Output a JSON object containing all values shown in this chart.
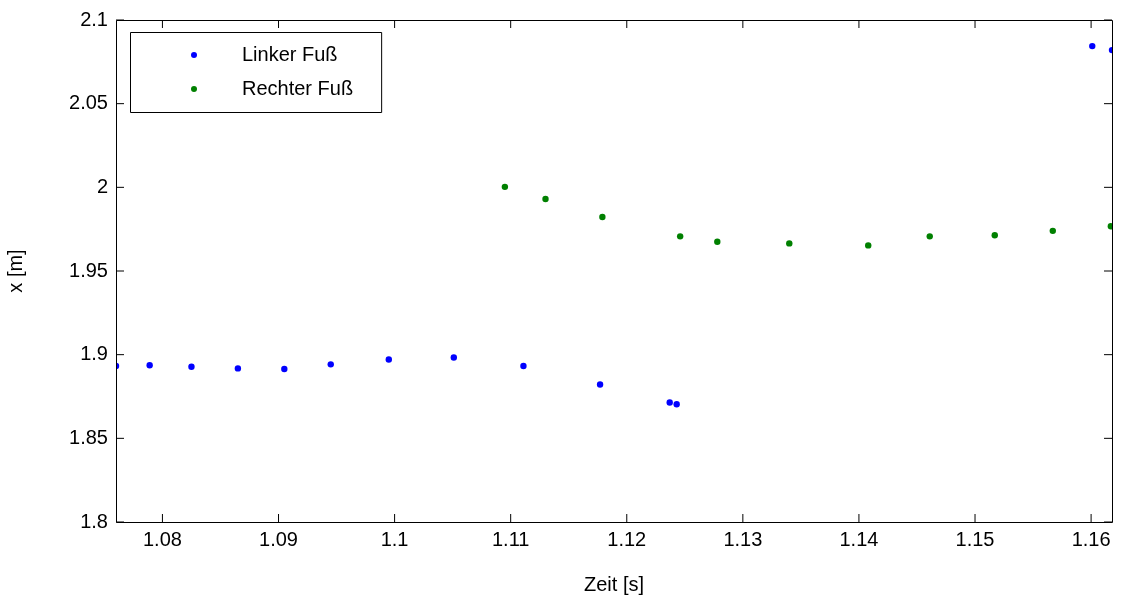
{
  "chart_data": {
    "type": "scatter",
    "xlabel": "Zeit [s]",
    "ylabel": "x [m]",
    "xlim": [
      1.076,
      1.1618
    ],
    "xticks": [
      1.08,
      1.09,
      1.1,
      1.11,
      1.12,
      1.13,
      1.14,
      1.15,
      1.16
    ],
    "ylim": [
      1.8,
      2.1
    ],
    "yticks": [
      1.8,
      1.85,
      1.9,
      1.95,
      2,
      2.05,
      2.1
    ],
    "grid": false,
    "legend": "top left",
    "marker": "circle",
    "series": [
      {
        "name": "Linker Fuß",
        "color": "#0000ff",
        "x": [
          1.076,
          1.0789,
          1.0825,
          1.0865,
          1.0905,
          1.0945,
          1.0995,
          1.1051,
          1.1111,
          1.1177,
          1.1237,
          1.1243,
          1.1601,
          1.1618
        ],
        "values": [
          1.8932,
          1.8937,
          1.8928,
          1.8918,
          1.8914,
          1.8942,
          1.8971,
          1.8983,
          1.8932,
          1.8822,
          1.8714,
          1.8704,
          2.0844,
          2.082
        ]
      },
      {
        "name": "Rechter Fuß",
        "color": "#008000",
        "x": [
          1.1095,
          1.113,
          1.1179,
          1.1246,
          1.1278,
          1.134,
          1.1408,
          1.1461,
          1.1517,
          1.1567,
          1.1617
        ],
        "values": [
          2.0003,
          1.993,
          1.9823,
          1.9707,
          1.9675,
          1.9665,
          1.9653,
          1.9707,
          1.9714,
          1.974,
          1.9767
        ]
      }
    ]
  }
}
